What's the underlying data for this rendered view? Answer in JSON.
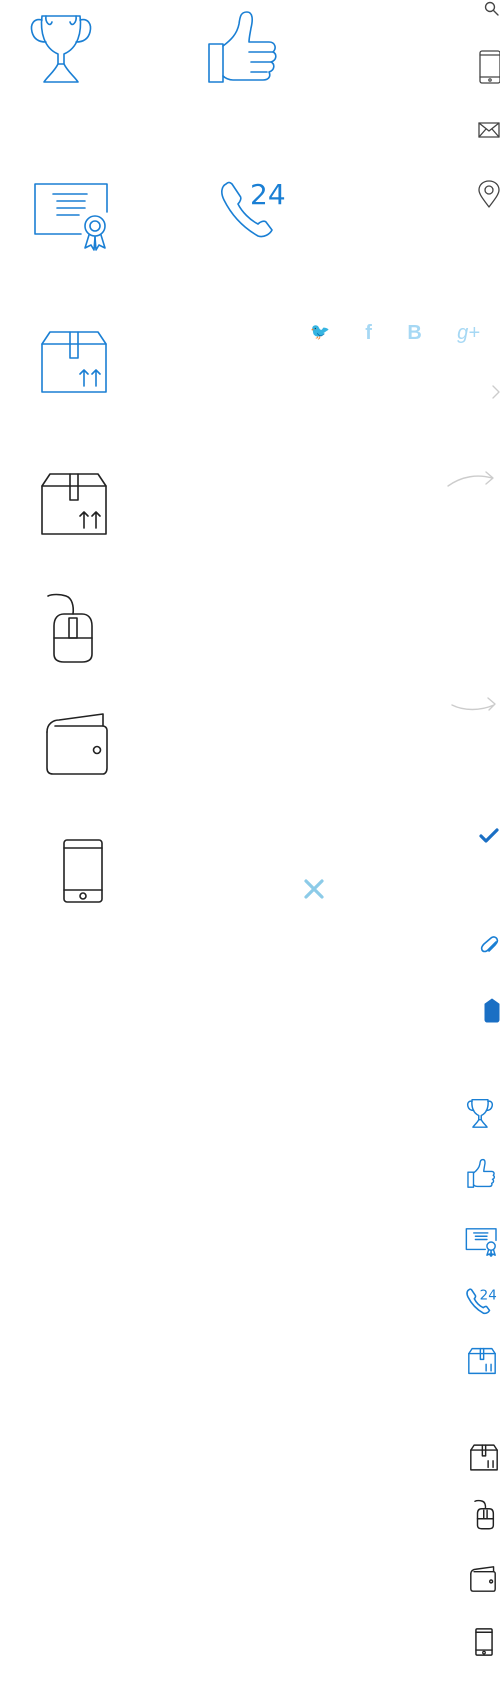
{
  "social": {
    "twitter": "🐦",
    "facebook": "f",
    "vk": "B",
    "gplus": "g+"
  },
  "badge": {
    "hours": "24"
  },
  "colors": {
    "accent": "#1a7fd4",
    "stroke_dark": "#222222",
    "social_light": "#a6d8f4",
    "muted": "#cccccc",
    "close": "#8ccbe8"
  },
  "icons": [
    "trophy-icon",
    "thumbs-up-icon",
    "certificate-icon",
    "phone-24-icon",
    "box-icon",
    "mouse-icon",
    "wallet-icon",
    "tablet-icon",
    "search-icon",
    "mobile-icon",
    "mail-icon",
    "location-pin-icon",
    "chevron-right-icon",
    "arrow-right-icon",
    "check-icon",
    "close-icon",
    "paperclip-icon",
    "tag-icon"
  ]
}
